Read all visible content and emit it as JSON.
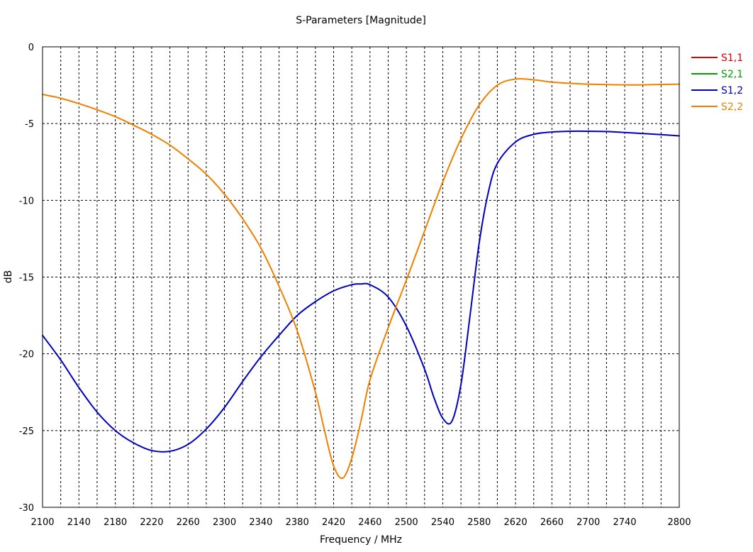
{
  "chart_data": {
    "type": "line",
    "title": "S-Parameters [Magnitude]",
    "xlabel": "Frequency / MHz",
    "ylabel": "dB",
    "xlim": [
      2100,
      2800
    ],
    "ylim": [
      -30,
      0
    ],
    "xticks": [
      2100,
      2140,
      2180,
      2220,
      2260,
      2300,
      2340,
      2380,
      2420,
      2460,
      2500,
      2540,
      2580,
      2620,
      2660,
      2700,
      2740,
      2800
    ],
    "yticks": [
      0,
      -5,
      -10,
      -15,
      -20,
      -25,
      -30
    ],
    "grid": true,
    "legend_position": "top-right",
    "series": [
      {
        "name": "S1,1",
        "color": "#e00000",
        "x": [],
        "y": []
      },
      {
        "name": "S2,1",
        "color": "#00a000",
        "x": [],
        "y": []
      },
      {
        "name": "S1,2",
        "color": "#0000c0",
        "x": [
          2100,
          2120,
          2140,
          2160,
          2180,
          2200,
          2220,
          2240,
          2260,
          2280,
          2300,
          2320,
          2340,
          2360,
          2380,
          2400,
          2420,
          2440,
          2450,
          2460,
          2480,
          2500,
          2520,
          2530,
          2540,
          2550,
          2560,
          2570,
          2580,
          2590,
          2600,
          2620,
          2640,
          2660,
          2680,
          2700,
          2720,
          2740,
          2760,
          2780,
          2800
        ],
        "y": [
          -18.8,
          -20.4,
          -22.2,
          -23.8,
          -25.0,
          -25.8,
          -26.3,
          -26.35,
          -25.9,
          -24.9,
          -23.5,
          -21.8,
          -20.2,
          -18.8,
          -17.5,
          -16.6,
          -15.9,
          -15.5,
          -15.45,
          -15.5,
          -16.3,
          -18.2,
          -21.0,
          -22.8,
          -24.2,
          -24.4,
          -22.0,
          -17.5,
          -12.8,
          -9.5,
          -7.6,
          -6.2,
          -5.7,
          -5.55,
          -5.5,
          -5.5,
          -5.52,
          -5.58,
          -5.65,
          -5.72,
          -5.8
        ]
      },
      {
        "name": "S2,2",
        "color": "#f08000",
        "x": [
          2100,
          2120,
          2140,
          2160,
          2180,
          2200,
          2220,
          2240,
          2260,
          2280,
          2300,
          2320,
          2340,
          2360,
          2380,
          2400,
          2410,
          2420,
          2430,
          2440,
          2450,
          2460,
          2480,
          2500,
          2520,
          2540,
          2560,
          2580,
          2600,
          2620,
          2640,
          2660,
          2680,
          2700,
          2720,
          2740,
          2760,
          2780,
          2800
        ],
        "y": [
          -3.1,
          -3.35,
          -3.7,
          -4.1,
          -4.55,
          -5.1,
          -5.7,
          -6.4,
          -7.3,
          -8.3,
          -9.6,
          -11.2,
          -13.1,
          -15.6,
          -18.5,
          -22.5,
          -25.0,
          -27.3,
          -28.1,
          -26.8,
          -24.4,
          -21.7,
          -18.3,
          -15.2,
          -12.0,
          -8.8,
          -6.0,
          -3.8,
          -2.5,
          -2.1,
          -2.15,
          -2.3,
          -2.38,
          -2.43,
          -2.46,
          -2.48,
          -2.48,
          -2.45,
          -2.43
        ]
      }
    ]
  }
}
